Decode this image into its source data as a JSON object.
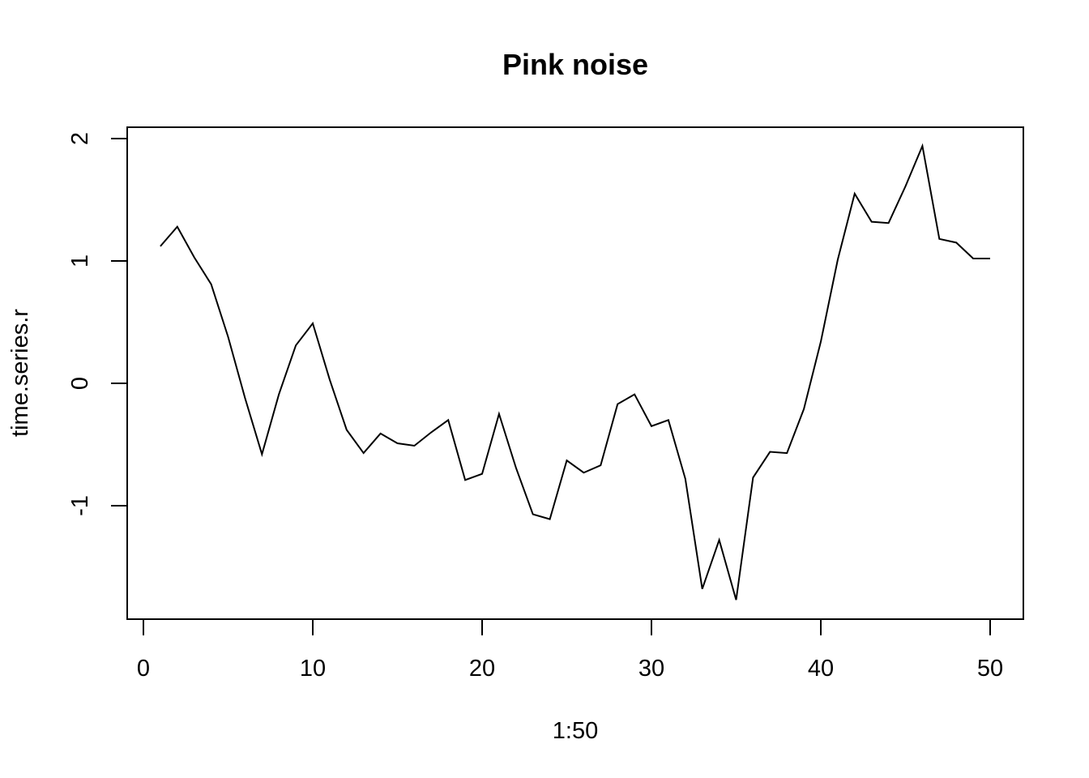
{
  "chart_data": {
    "type": "line",
    "title": "Pink noise",
    "xlabel": "1:50",
    "ylabel": "time.series.r",
    "xlim": [
      0,
      50
    ],
    "ylim": [
      -1.78,
      2.0
    ],
    "x_ticks": [
      0,
      10,
      20,
      30,
      40,
      50
    ],
    "x_tick_labels": [
      "0",
      "10",
      "20",
      "30",
      "40",
      "50"
    ],
    "y_ticks": [
      -1,
      0,
      1,
      2
    ],
    "y_tick_labels": [
      "-1",
      "0",
      "1",
      "2"
    ],
    "grid": false,
    "line_color": "#000000",
    "series": [
      {
        "x": [
          1,
          2,
          3,
          4,
          5,
          6,
          7,
          8,
          9,
          10,
          11,
          12,
          13,
          14,
          15,
          16,
          17,
          18,
          19,
          20,
          21,
          22,
          23,
          24,
          25,
          26,
          27,
          28,
          29,
          30,
          31,
          32,
          33,
          34,
          35,
          36,
          37,
          38,
          39,
          40,
          41,
          42,
          43,
          44,
          45,
          46,
          47,
          48,
          49,
          50
        ],
        "values": [
          1.12,
          1.28,
          1.03,
          0.81,
          0.38,
          -0.12,
          -0.58,
          -0.09,
          0.31,
          0.49,
          0.03,
          -0.38,
          -0.57,
          -0.41,
          -0.49,
          -0.51,
          -0.4,
          -0.3,
          -0.79,
          -0.74,
          -0.25,
          -0.69,
          -1.07,
          -1.11,
          -0.63,
          -0.73,
          -0.67,
          -0.17,
          -0.09,
          -0.35,
          -0.3,
          -0.78,
          -1.68,
          -1.28,
          -1.77,
          -0.77,
          -0.56,
          -0.57,
          -0.21,
          0.34,
          1.01,
          1.55,
          1.32,
          1.31,
          1.61,
          1.94,
          1.18,
          1.15,
          1.02,
          1.02
        ]
      }
    ]
  }
}
